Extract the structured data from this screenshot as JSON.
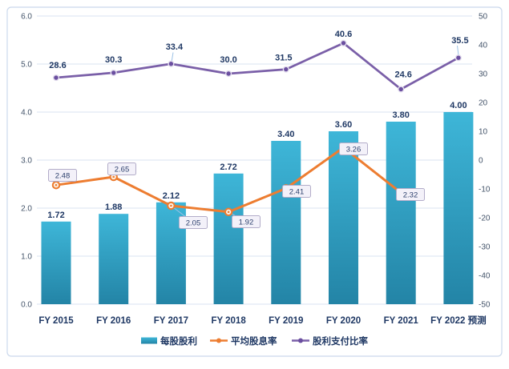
{
  "chart_data": {
    "type": "combo",
    "title": "",
    "categories": [
      "FY 2015",
      "FY 2016",
      "FY 2017",
      "FY 2018",
      "FY 2019",
      "FY 2020",
      "FY 2021",
      "FY 2022 预测"
    ],
    "series": [
      {
        "name": "每股股利",
        "type": "bar",
        "axis": "left",
        "values": [
          1.72,
          1.88,
          2.12,
          2.72,
          3.4,
          3.6,
          3.8,
          4.0
        ],
        "labels": [
          "1.72",
          "1.88",
          "2.12",
          "2.72",
          "3.40",
          "3.60",
          "3.80",
          "4.00"
        ],
        "color_top": "#3EB6D8",
        "color_bottom": "#2384A6"
      },
      {
        "name": "平均股息率",
        "type": "line",
        "axis": "left",
        "values": [
          2.48,
          2.65,
          2.05,
          1.92,
          2.41,
          3.26,
          2.32,
          null
        ],
        "labels": [
          "2.48",
          "2.65",
          "2.05",
          "1.92",
          "2.41",
          "3.26",
          "2.32"
        ],
        "color": "#ED7D31"
      },
      {
        "name": "股利支付比率",
        "type": "line",
        "axis": "right",
        "values": [
          28.6,
          30.3,
          33.4,
          30.0,
          31.5,
          40.6,
          24.6,
          35.5
        ],
        "labels": [
          "28.6",
          "30.3",
          "33.4",
          "30.0",
          "31.5",
          "40.6",
          "24.6",
          "35.5"
        ],
        "color": "#7A5FA8"
      }
    ],
    "left_axis": {
      "min": 0,
      "max": 6,
      "ticks": [
        "6.0",
        "5.0",
        "4.0",
        "3.0",
        "2.0",
        "1.0",
        "0.0"
      ]
    },
    "right_axis": {
      "min": -50,
      "max": 50,
      "ticks": [
        "50",
        "40",
        "30",
        "20",
        "10",
        "0",
        "-10",
        "-20",
        "-30",
        "-40",
        "-50"
      ]
    },
    "grid": "horizontal",
    "legend": {
      "position": "bottom",
      "entries": [
        "每股股利",
        "平均股息率",
        "股利支付比率"
      ]
    }
  },
  "colors": {
    "bar_top": "#3EB6D8",
    "bar_bottom": "#2384A6",
    "line_orange": "#ED7D31",
    "line_purple": "#7A5FA8",
    "data_label": "#1F3864",
    "axis_tick": "#44546A",
    "gridline": "#D9E3F1",
    "frame_border": "#CBD8EC",
    "callout_fill": "#F3F1F9",
    "callout_border": "#B3ADC9",
    "leader_line": "#9DC3E6"
  }
}
